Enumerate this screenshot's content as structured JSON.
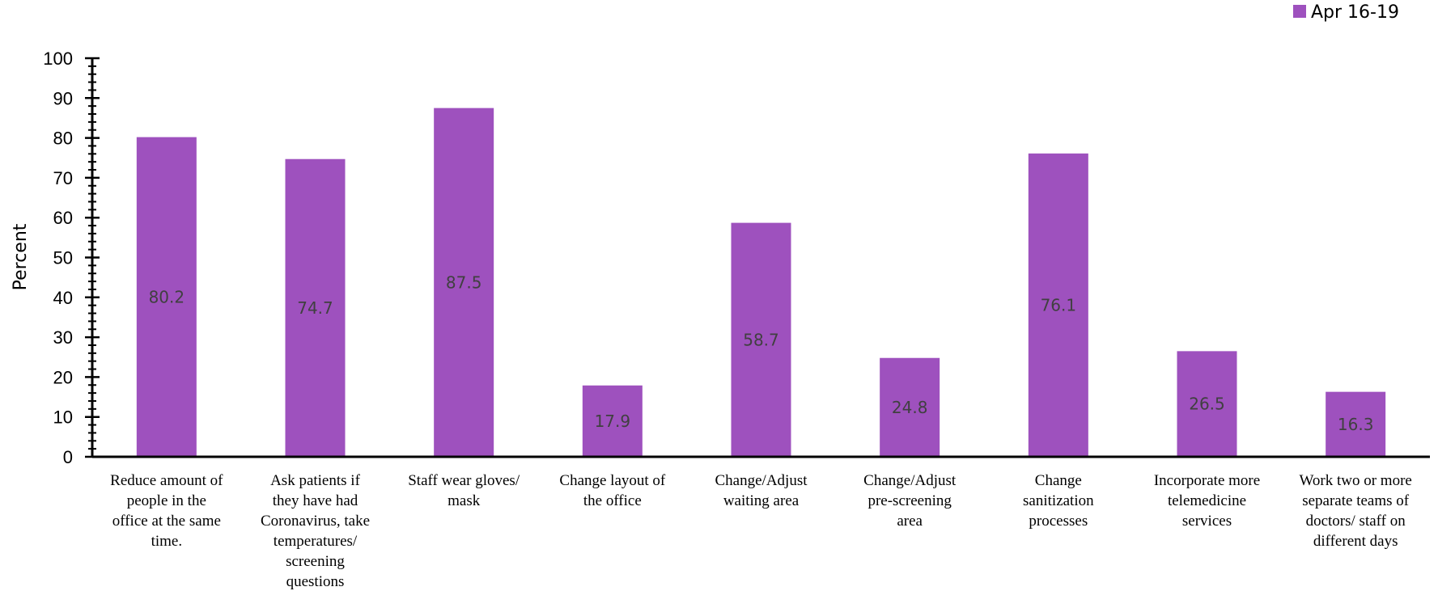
{
  "chart_data": {
    "type": "bar",
    "title": "",
    "xlabel": "",
    "ylabel": "Percent",
    "ylim": [
      0,
      100
    ],
    "ytick_step": 10,
    "minor_ticks_per_major": 5,
    "grid": false,
    "legend_position": "top-right",
    "categories": [
      "Reduce amount of people in the office at the same time.",
      "Ask patients if they have had Coronavirus, take temperatures/ screening questions",
      "Staff wear gloves/ mask",
      "Change layout of the office",
      "Change/Adjust waiting area",
      "Change/Adjust pre-screening area",
      "Change sanitization processes",
      "Incorporate more telemedicine services",
      "Work two or more separate teams of doctors/ staff on different days"
    ],
    "category_label_lines": [
      [
        "Reduce amount of",
        "people in the",
        "office at the same",
        "time."
      ],
      [
        "Ask patients if",
        "they have had",
        "Coronavirus, take",
        "temperatures/",
        "screening",
        "questions"
      ],
      [
        "Staff wear gloves/",
        "mask"
      ],
      [
        "Change layout of",
        "the office"
      ],
      [
        "Change/Adjust",
        "waiting area"
      ],
      [
        "Change/Adjust",
        "pre-screening",
        "area"
      ],
      [
        "Change",
        "sanitization",
        "processes"
      ],
      [
        "Incorporate more",
        "telemedicine",
        "services"
      ],
      [
        "Work two or more",
        "separate teams of",
        "doctors/ staff on",
        "different days"
      ]
    ],
    "series": [
      {
        "name": "Apr 16-19",
        "color": "#9e51be",
        "values": [
          80.2,
          74.7,
          87.5,
          17.9,
          58.7,
          24.8,
          76.1,
          26.5,
          16.3
        ]
      }
    ]
  }
}
